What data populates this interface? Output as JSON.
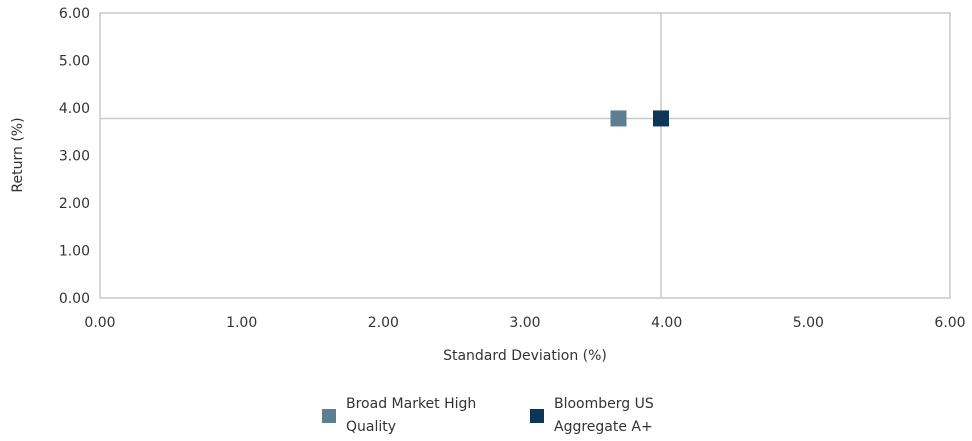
{
  "chart_data": {
    "type": "scatter",
    "title": "",
    "xlabel": "Standard Deviation (%)",
    "ylabel": "Return (%)",
    "xlim": [
      0,
      6
    ],
    "ylim": [
      0,
      6
    ],
    "x_ticks": [
      "0.00",
      "1.00",
      "2.00",
      "3.00",
      "4.00",
      "5.00",
      "6.00"
    ],
    "y_ticks": [
      "0.00",
      "1.00",
      "2.00",
      "3.00",
      "4.00",
      "5.00",
      "6.00"
    ],
    "grid": false,
    "crosshair": {
      "x": 3.96,
      "y": 3.78
    },
    "legend_position": "bottom",
    "series": [
      {
        "name": "Broad Market High Quality",
        "color": "#5d7e8e",
        "x": 3.66,
        "y": 3.78
      },
      {
        "name": "Bloomberg US Aggregate A+",
        "color": "#0d3557",
        "x": 3.96,
        "y": 3.78
      }
    ]
  },
  "legend": {
    "items": [
      {
        "label": "Broad Market High\nQuality",
        "color": "#5d7e8e"
      },
      {
        "label": "Bloomberg US\nAggregate A+",
        "color": "#0d3557"
      }
    ]
  }
}
